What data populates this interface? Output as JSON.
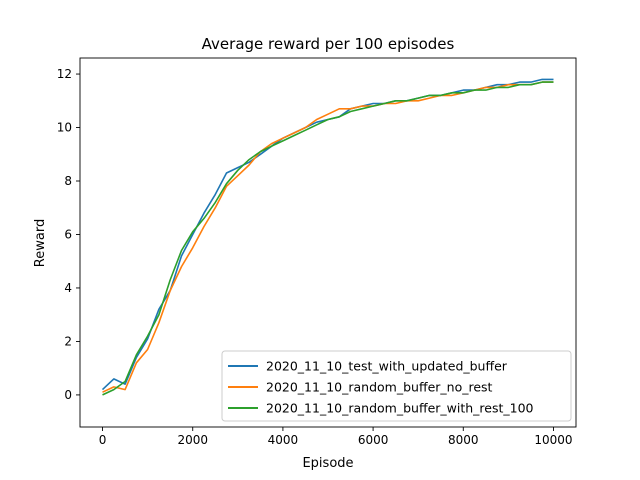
{
  "chart_data": {
    "type": "line",
    "title": "Average reward per 100 episodes",
    "xlabel": "Episode",
    "ylabel": "Reward",
    "xlim": [
      -500,
      10500
    ],
    "ylim": [
      -1.2,
      12.6
    ],
    "xticks": [
      0,
      2000,
      4000,
      6000,
      8000,
      10000
    ],
    "xtick_labels": [
      "0",
      "2000",
      "4000",
      "6000",
      "8000",
      "10000"
    ],
    "yticks": [
      0,
      2,
      4,
      6,
      8,
      10,
      12
    ],
    "ytick_labels": [
      "0",
      "2",
      "4",
      "6",
      "8",
      "10",
      "12"
    ],
    "grid": false,
    "legend_position": "lower-right",
    "x": [
      0,
      250,
      500,
      750,
      1000,
      1250,
      1500,
      1750,
      2000,
      2250,
      2500,
      2750,
      3000,
      3250,
      3500,
      3750,
      4000,
      4250,
      4500,
      4750,
      5000,
      5250,
      5500,
      5750,
      6000,
      6250,
      6500,
      6750,
      7000,
      7250,
      7500,
      7750,
      8000,
      8250,
      8500,
      8750,
      9000,
      9250,
      9500,
      9750,
      10000
    ],
    "series": [
      {
        "name": "2020_11_10_test_with_updated_buffer",
        "color": "#1f77b4",
        "values": [
          0.2,
          0.6,
          0.4,
          1.4,
          2.1,
          3.2,
          3.9,
          5.2,
          6.0,
          6.8,
          7.5,
          8.3,
          8.5,
          8.7,
          9.0,
          9.3,
          9.6,
          9.8,
          10.0,
          10.2,
          10.3,
          10.4,
          10.7,
          10.8,
          10.9,
          10.9,
          11.0,
          11.0,
          11.1,
          11.2,
          11.2,
          11.3,
          11.4,
          11.4,
          11.5,
          11.6,
          11.6,
          11.7,
          11.7,
          11.8,
          11.8
        ]
      },
      {
        "name": "2020_11_10_random_buffer_no_rest",
        "color": "#ff7f0e",
        "values": [
          0.1,
          0.3,
          0.2,
          1.2,
          1.7,
          2.7,
          3.9,
          4.8,
          5.5,
          6.3,
          7.0,
          7.8,
          8.2,
          8.6,
          9.1,
          9.4,
          9.6,
          9.8,
          10.0,
          10.3,
          10.5,
          10.7,
          10.7,
          10.8,
          10.8,
          10.9,
          10.9,
          11.0,
          11.0,
          11.1,
          11.2,
          11.2,
          11.3,
          11.4,
          11.5,
          11.5,
          11.6,
          11.6,
          11.6,
          11.7,
          11.7
        ]
      },
      {
        "name": "2020_11_10_random_buffer_with_rest_100",
        "color": "#2ca02c",
        "values": [
          0.0,
          0.2,
          0.5,
          1.5,
          2.2,
          3.0,
          4.3,
          5.4,
          6.1,
          6.6,
          7.2,
          7.9,
          8.4,
          8.8,
          9.1,
          9.3,
          9.5,
          9.7,
          9.9,
          10.1,
          10.3,
          10.4,
          10.6,
          10.7,
          10.8,
          10.9,
          11.0,
          11.0,
          11.1,
          11.2,
          11.2,
          11.3,
          11.3,
          11.4,
          11.4,
          11.5,
          11.5,
          11.6,
          11.6,
          11.7,
          11.7
        ]
      }
    ]
  }
}
